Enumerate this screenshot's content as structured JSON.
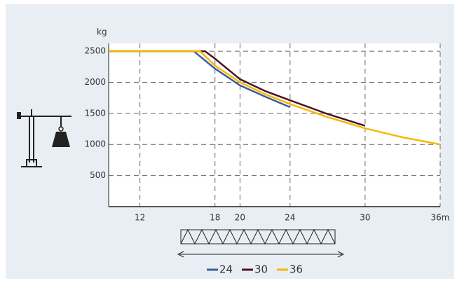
{
  "chart_data": {
    "type": "line",
    "y_label": "kg",
    "series": [
      {
        "name": "24",
        "color": "#3a5da0",
        "x": [
          9.5,
          16.3,
          18,
          20,
          22,
          24
        ],
        "values": [
          2500,
          2500,
          2220,
          1950,
          1770,
          1600
        ]
      },
      {
        "name": "30",
        "color": "#4a1424",
        "x": [
          9.5,
          17.2,
          18,
          20,
          22,
          24,
          27,
          30
        ],
        "values": [
          2500,
          2500,
          2380,
          2050,
          1860,
          1710,
          1490,
          1300
        ]
      },
      {
        "name": "36",
        "color": "#f5b800",
        "x": [
          9.5,
          16.8,
          18,
          20,
          22,
          24,
          27,
          30,
          33,
          36
        ],
        "values": [
          2500,
          2500,
          2270,
          2000,
          1810,
          1650,
          1440,
          1260,
          1115,
          1000
        ]
      }
    ],
    "xlim": [
      9.5,
      36
    ],
    "ylim": [
      0,
      2625
    ],
    "xticks": [
      12,
      18,
      20,
      24,
      30,
      {
        "value": 36,
        "label": "36m"
      }
    ],
    "yticks": [
      500,
      1000,
      1500,
      2000,
      2500
    ],
    "grid": true
  }
}
